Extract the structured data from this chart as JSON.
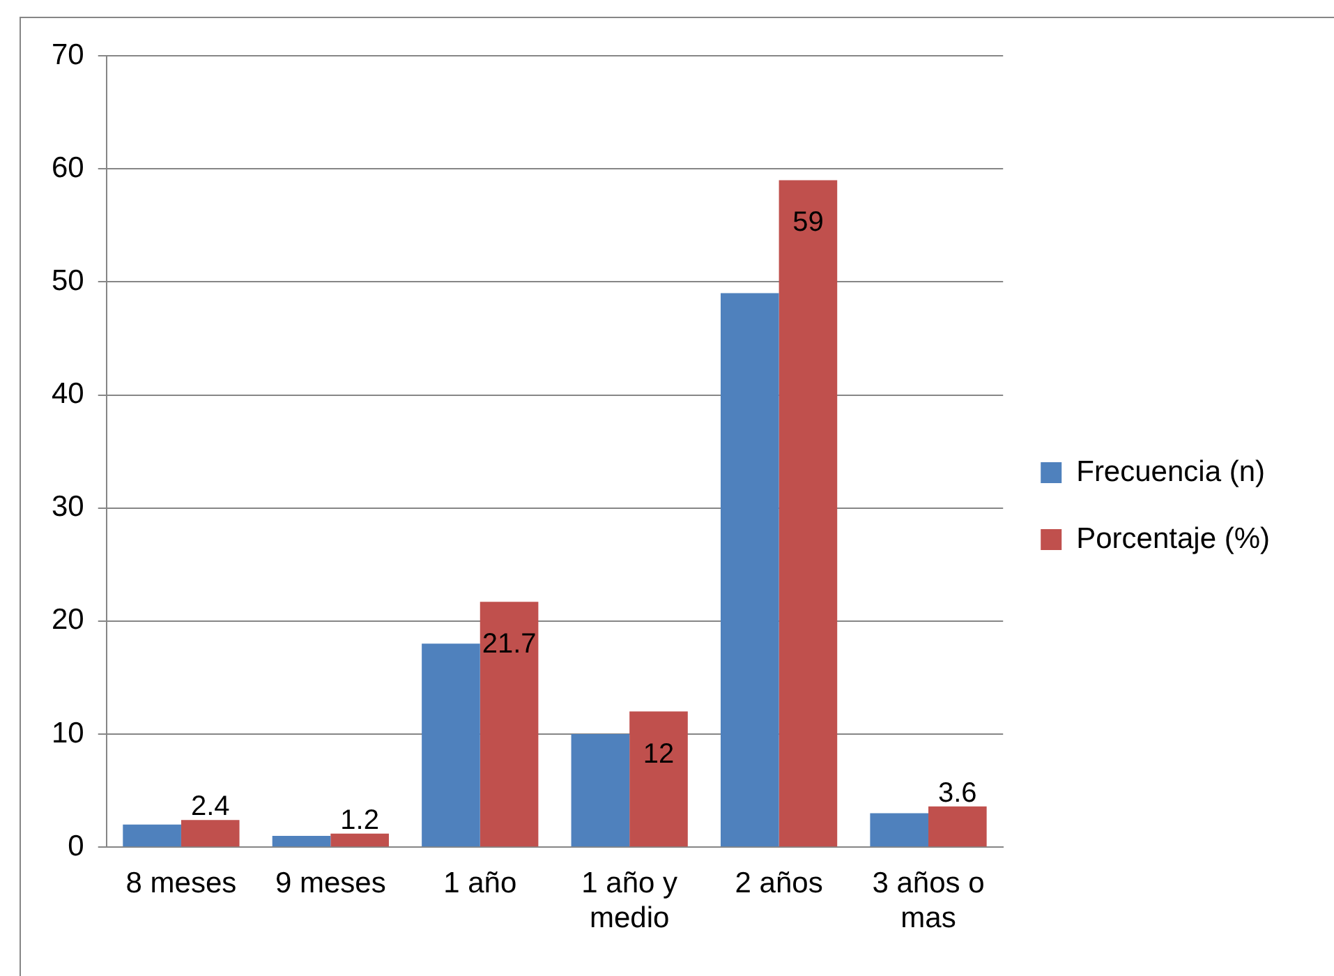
{
  "chart_data": {
    "type": "bar",
    "categories": [
      "8 meses",
      "9 meses",
      "1 año",
      "1 año y medio",
      "2 años",
      "3 años o mas"
    ],
    "series": [
      {
        "name": "Frecuencia (n)",
        "color": "#4f81bd",
        "values": [
          2,
          1,
          18,
          10,
          49,
          3
        ]
      },
      {
        "name": "Porcentaje (%)",
        "color": "#c0504d",
        "values": [
          2.4,
          1.2,
          21.7,
          12,
          59,
          3.6
        ],
        "value_labels": [
          "2.4",
          "1.2",
          "21.7",
          "12",
          "59",
          "3.6"
        ]
      }
    ],
    "ylim": [
      0,
      70
    ],
    "yticks": [
      0,
      10,
      20,
      30,
      40,
      50,
      60,
      70
    ],
    "grid": "y",
    "legend": "right"
  }
}
